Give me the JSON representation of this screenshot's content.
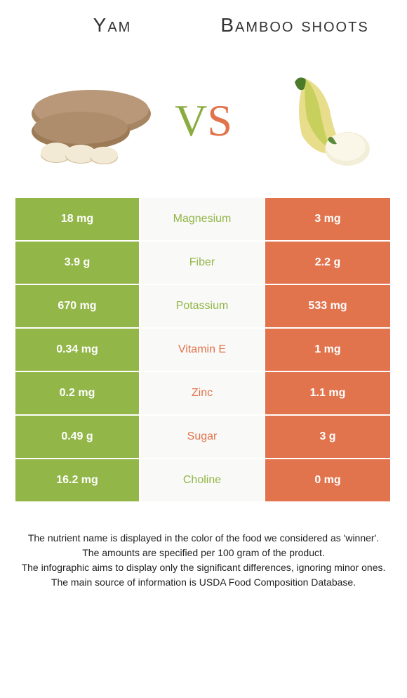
{
  "titles": {
    "left": "Yam",
    "right": "Bamboo shoots"
  },
  "vs": {
    "v": "V",
    "s": "S"
  },
  "colors": {
    "green": "#92b648",
    "orange": "#e1734d",
    "vs_green": "#8aad3f",
    "vs_orange": "#e1734d",
    "mid_bg": "#f9f9f7"
  },
  "rows": [
    {
      "left": "18 mg",
      "label": "Magnesium",
      "right": "3 mg",
      "winner": "left"
    },
    {
      "left": "3.9 g",
      "label": "Fiber",
      "right": "2.2 g",
      "winner": "left"
    },
    {
      "left": "670 mg",
      "label": "Potassium",
      "right": "533 mg",
      "winner": "left"
    },
    {
      "left": "0.34 mg",
      "label": "Vitamin E",
      "right": "1 mg",
      "winner": "right"
    },
    {
      "left": "0.2 mg",
      "label": "Zinc",
      "right": "1.1 mg",
      "winner": "right"
    },
    {
      "left": "0.49 g",
      "label": "Sugar",
      "right": "3 g",
      "winner": "right"
    },
    {
      "left": "16.2 mg",
      "label": "Choline",
      "right": "0 mg",
      "winner": "left"
    }
  ],
  "footer": {
    "l1": "The nutrient name is displayed in the color of the food we considered as 'winner'.",
    "l2": "The amounts are specified per 100 gram of the product.",
    "l3": "The infographic aims to display only the significant differences, ignoring minor ones.",
    "l4": "The main source of information is USDA Food Composition Database."
  }
}
